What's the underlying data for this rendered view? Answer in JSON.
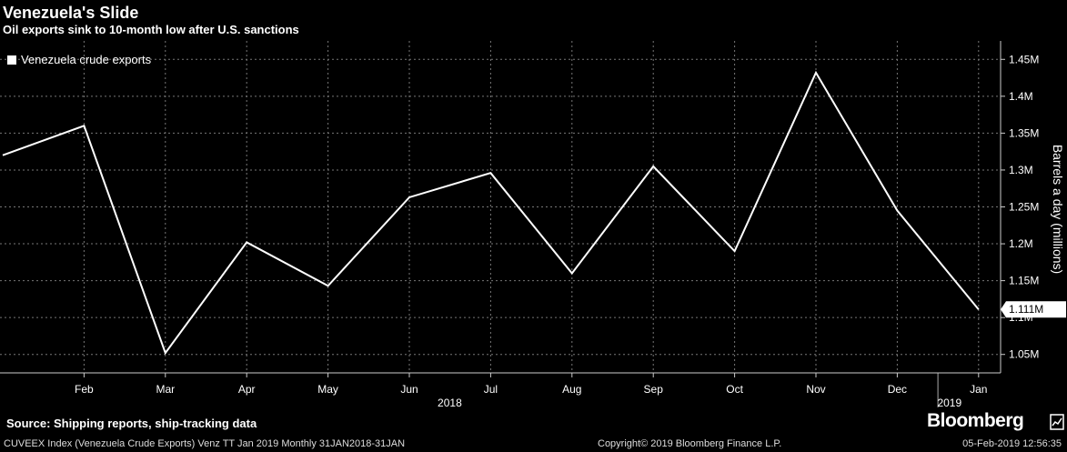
{
  "header": {
    "title": "Venezuela's Slide",
    "subtitle": "Oil exports sink to 10-month low after U.S. sanctions"
  },
  "chart_data": {
    "type": "line",
    "title": "Venezuela's Slide",
    "subtitle": "Oil exports sink to 10-month low after U.S. sanctions",
    "xlabel": "",
    "ylabel": "Barrels a day (millions)",
    "x": [
      "2018-01",
      "2018-02",
      "2018-03",
      "2018-04",
      "2018-05",
      "2018-06",
      "2018-07",
      "2018-08",
      "2018-09",
      "2018-10",
      "2018-11",
      "2018-12",
      "2019-01"
    ],
    "x_tick_labels": [
      "Feb",
      "Mar",
      "Apr",
      "May",
      "Jun",
      "Jul",
      "Aug",
      "Sep",
      "Oct",
      "Nov",
      "Dec",
      "Jan"
    ],
    "year_labels": [
      "2018",
      "2019"
    ],
    "series": [
      {
        "name": "Venezuela crude exports",
        "color": "#ffffff",
        "values": [
          1.32,
          1.36,
          1.052,
          1.202,
          1.143,
          1.263,
          1.296,
          1.16,
          1.305,
          1.19,
          1.432,
          1.245,
          1.111
        ]
      }
    ],
    "y_ticks": [
      1.05,
      1.1,
      1.15,
      1.2,
      1.25,
      1.3,
      1.35,
      1.4,
      1.45
    ],
    "y_tick_labels": [
      "1.05M",
      "1.1M",
      "1.15M",
      "1.2M",
      "1.25M",
      "1.3M",
      "1.35M",
      "1.4M",
      "1.45M"
    ],
    "ylim": [
      1.025,
      1.475
    ],
    "last_value_label": "1.111M",
    "grid": true,
    "legend_position": "top-left",
    "y_axis_position": "right"
  },
  "footer": {
    "source": "Source: Shipping reports, ship-tracking data",
    "index_line": "CUVEEX Index (Venezuela Crude Exports) Venz TT Jan 2019  Monthly 31JAN2018-31JAN",
    "copyright": "Copyright© 2019 Bloomberg Finance L.P.",
    "timestamp": "05-Feb-2019 12:56:35",
    "brand": "Bloomberg"
  }
}
